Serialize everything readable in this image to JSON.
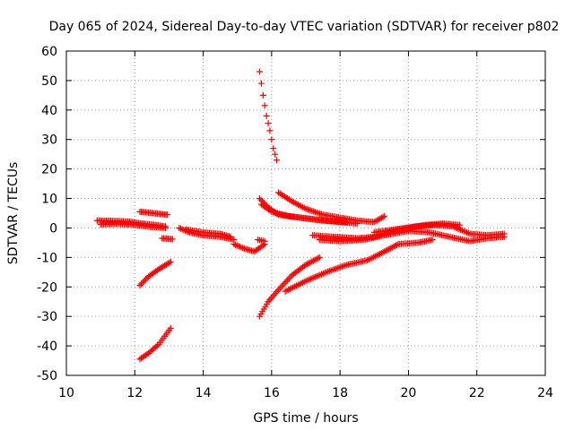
{
  "chart_data": {
    "type": "scatter",
    "title": "Day 065 of 2024, Sidereal Day-to-day VTEC variation (SDTVAR) for receiver p802",
    "xlabel": "GPS time / hours",
    "ylabel": "SDTVAR / TECUs",
    "xlim": [
      10,
      24
    ],
    "ylim": [
      -50,
      60
    ],
    "xticks": [
      "10",
      "12",
      "14",
      "16",
      "18",
      "20",
      "22",
      "24"
    ],
    "yticks": [
      "-50",
      "-40",
      "-30",
      "-20",
      "-10",
      "0",
      "10",
      "20",
      "30",
      "40",
      "50",
      "60"
    ],
    "grid": true,
    "marker": "plus",
    "color": "#ff0000",
    "series": [
      {
        "segments": [
          [
            [
              10.9,
              2.5
            ],
            [
              11.3,
              2.4
            ],
            [
              11.8,
              2.2
            ],
            [
              12.2,
              1.5
            ],
            [
              12.6,
              1.0
            ],
            [
              12.9,
              0.5
            ]
          ],
          [
            [
              11.0,
              1.2
            ],
            [
              11.5,
              1.4
            ],
            [
              12.0,
              1.0
            ],
            [
              12.5,
              0.3
            ],
            [
              12.9,
              0.0
            ]
          ],
          [
            [
              12.15,
              5.5
            ],
            [
              12.4,
              5.2
            ],
            [
              12.7,
              4.8
            ],
            [
              12.95,
              4.5
            ]
          ],
          [
            [
              12.8,
              -3.5
            ],
            [
              13.1,
              -3.8
            ]
          ],
          [
            [
              13.3,
              0.0
            ],
            [
              13.6,
              -1.5
            ],
            [
              14.0,
              -2.5
            ],
            [
              14.5,
              -3.0
            ],
            [
              14.9,
              -4.0
            ]
          ],
          [
            [
              13.5,
              -0.5
            ],
            [
              14.0,
              -1.5
            ],
            [
              14.5,
              -2.0
            ],
            [
              14.8,
              -3.0
            ]
          ],
          [
            [
              14.9,
              -5.5
            ],
            [
              15.2,
              -7.0
            ],
            [
              15.5,
              -8.0
            ],
            [
              15.8,
              -5.5
            ]
          ],
          [
            [
              15.6,
              -4.0
            ],
            [
              15.8,
              -4.5
            ]
          ],
          [
            [
              15.65,
              53
            ],
            [
              15.75,
              45
            ],
            [
              15.85,
              38
            ],
            [
              15.95,
              33
            ],
            [
              16.05,
              27
            ],
            [
              16.15,
              23
            ]
          ],
          [
            [
              15.65,
              10.0
            ],
            [
              15.9,
              7.0
            ],
            [
              16.2,
              4.5
            ],
            [
              16.8,
              3.5
            ],
            [
              17.5,
              2.5
            ],
            [
              18.2,
              2.0
            ]
          ],
          [
            [
              15.7,
              8.0
            ],
            [
              16.0,
              5.5
            ],
            [
              16.5,
              4.0
            ],
            [
              17.2,
              3.0
            ],
            [
              18.0,
              2.0
            ],
            [
              18.5,
              1.5
            ]
          ],
          [
            [
              16.2,
              12.0
            ],
            [
              16.6,
              9.0
            ],
            [
              17.0,
              6.5
            ],
            [
              17.5,
              4.5
            ],
            [
              18.0,
              3.5
            ],
            [
              18.5,
              2.5
            ],
            [
              19.0,
              2.0
            ],
            [
              19.3,
              4.0
            ]
          ],
          [
            [
              15.65,
              -30.0
            ],
            [
              15.9,
              -25.0
            ],
            [
              16.2,
              -21.0
            ],
            [
              16.6,
              -16.0
            ],
            [
              17.0,
              -12.5
            ],
            [
              17.4,
              -10.0
            ]
          ],
          [
            [
              16.4,
              -21.5
            ],
            [
              17.0,
              -18.0
            ],
            [
              17.6,
              -15.0
            ],
            [
              18.2,
              -12.5
            ],
            [
              18.8,
              -11.0
            ],
            [
              19.3,
              -8.0
            ],
            [
              19.7,
              -5.5
            ],
            [
              20.3,
              -5.0
            ],
            [
              20.7,
              -4.0
            ]
          ],
          [
            [
              17.2,
              -2.5
            ],
            [
              17.8,
              -3.0
            ],
            [
              18.5,
              -3.5
            ],
            [
              19.0,
              -3.0
            ],
            [
              19.5,
              -1.0
            ],
            [
              20.0,
              0.0
            ],
            [
              20.5,
              1.0
            ],
            [
              21.0,
              1.5
            ],
            [
              21.5,
              1.0
            ]
          ],
          [
            [
              17.4,
              -4.0
            ],
            [
              18.0,
              -4.5
            ],
            [
              18.7,
              -4.0
            ],
            [
              19.3,
              -2.5
            ],
            [
              20.0,
              -1.0
            ],
            [
              20.6,
              -1.5
            ],
            [
              21.2,
              -3.0
            ],
            [
              21.8,
              -4.5
            ],
            [
              22.3,
              -3.5
            ],
            [
              22.8,
              -3.0
            ]
          ],
          [
            [
              19.0,
              -1.5
            ],
            [
              19.6,
              -0.5
            ],
            [
              20.2,
              0.5
            ],
            [
              20.8,
              1.0
            ],
            [
              21.3,
              0.5
            ],
            [
              21.8,
              -2.0
            ],
            [
              22.3,
              -2.5
            ],
            [
              22.8,
              -2.0
            ]
          ],
          [
            [
              12.15,
              -19.5
            ],
            [
              12.4,
              -16.5
            ],
            [
              12.7,
              -14.0
            ],
            [
              13.05,
              -11.5
            ]
          ],
          [
            [
              12.15,
              -44.5
            ],
            [
              12.4,
              -42.5
            ],
            [
              12.7,
              -39.5
            ],
            [
              13.05,
              -34.0
            ]
          ]
        ]
      }
    ]
  }
}
